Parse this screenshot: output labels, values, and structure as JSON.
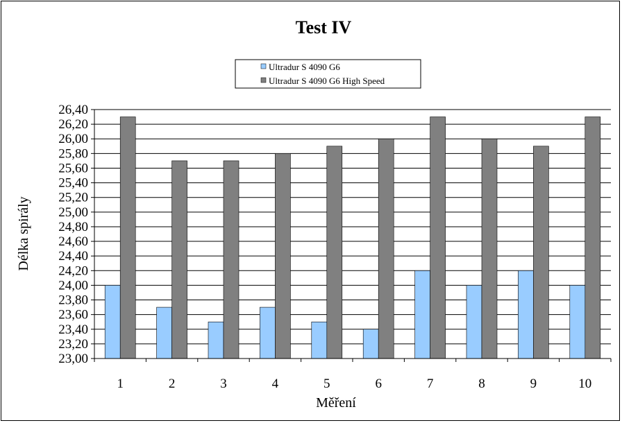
{
  "chart_data": {
    "type": "bar",
    "title": "Test IV",
    "xlabel": "Měření",
    "ylabel": "Délka spirály",
    "categories": [
      "1",
      "2",
      "3",
      "4",
      "5",
      "6",
      "7",
      "8",
      "9",
      "10"
    ],
    "series": [
      {
        "name": "Ultradur S 4090 G6",
        "color": "#99ccff",
        "values": [
          24.0,
          23.7,
          23.5,
          23.7,
          23.5,
          23.4,
          24.2,
          24.0,
          24.2,
          24.0
        ]
      },
      {
        "name": "Ultradur S 4090 G6 High Speed",
        "color": "#808080",
        "values": [
          26.3,
          25.7,
          25.7,
          25.8,
          25.9,
          26.0,
          26.3,
          26.0,
          25.9,
          26.3
        ]
      }
    ],
    "ylim": [
      23.0,
      26.4
    ],
    "ystep": 0.2,
    "ytick_decimals": 2,
    "decimal_separator": ",",
    "grid": true,
    "legend_position": "top-center"
  }
}
